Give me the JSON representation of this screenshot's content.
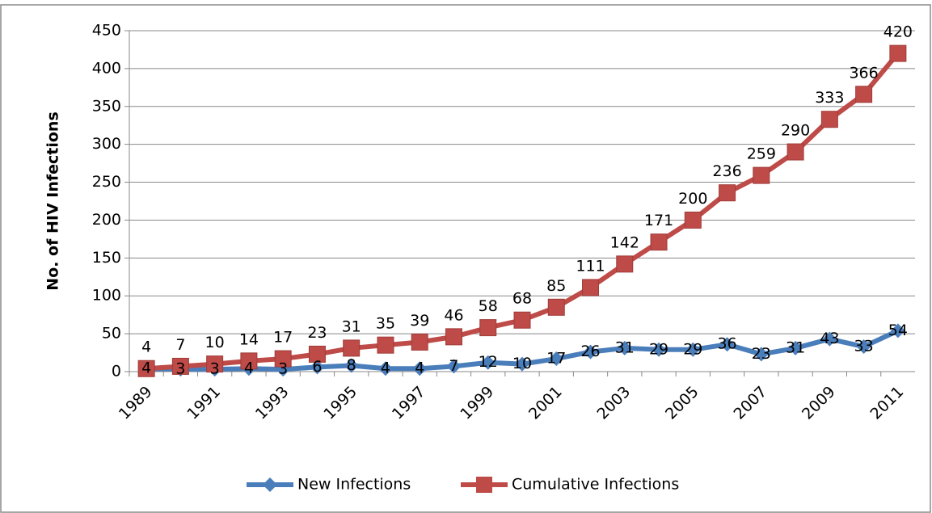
{
  "chart_data": {
    "type": "line",
    "y_label": "No. of HIV Infections",
    "categories": [
      "1989",
      null,
      "1991",
      null,
      "1993",
      null,
      "1995",
      null,
      "1997",
      null,
      "1999",
      null,
      "2001",
      null,
      "2003",
      null,
      "2005",
      null,
      "2007",
      null,
      "2009",
      null,
      "2011"
    ],
    "series": [
      {
        "name": "New Infections",
        "color": "#4a7ebb",
        "marker": "diamond",
        "values": [
          4,
          3,
          3,
          4,
          3,
          6,
          8,
          4,
          4,
          7,
          12,
          10,
          17,
          26,
          31,
          29,
          29,
          36,
          23,
          31,
          43,
          33,
          54
        ]
      },
      {
        "name": "Cumulative Infections",
        "color": "#be4b48",
        "marker": "square",
        "values": [
          4,
          7,
          10,
          14,
          17,
          23,
          31,
          35,
          39,
          46,
          58,
          68,
          85,
          111,
          142,
          171,
          200,
          236,
          259,
          290,
          333,
          366,
          420
        ]
      }
    ],
    "ylim": [
      0,
      450
    ],
    "yticks": [
      0,
      50,
      100,
      150,
      200,
      250,
      300,
      350,
      400,
      450
    ],
    "grid": true,
    "legend": "bottom"
  }
}
